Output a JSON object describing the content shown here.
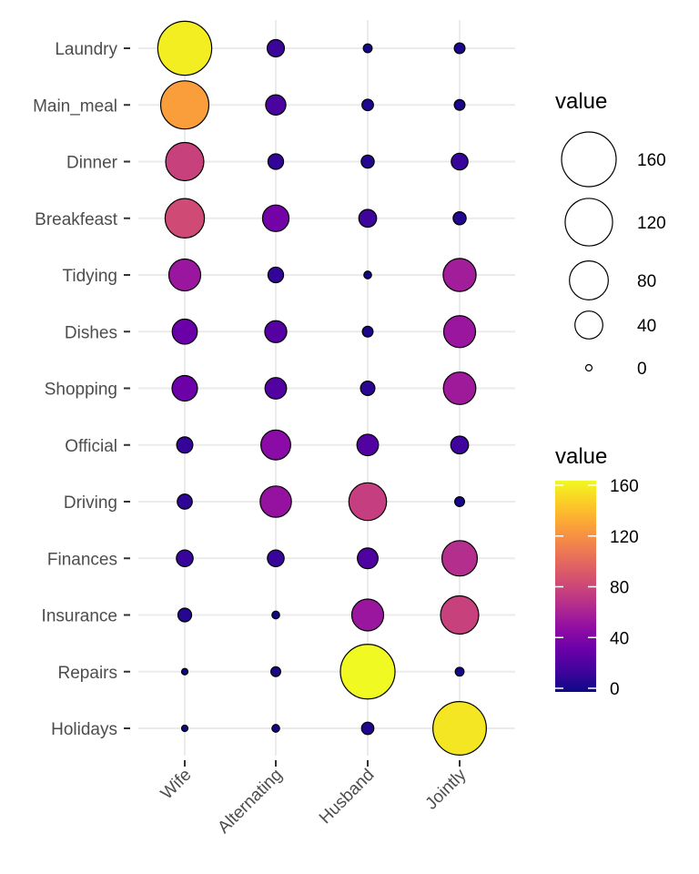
{
  "chart_data": {
    "type": "scatter",
    "subtype": "balloon",
    "title": "",
    "xlabel": "",
    "ylabel": "",
    "x_categories": [
      "Wife",
      "Alternating",
      "Husband",
      "Jointly"
    ],
    "y_categories": [
      "Laundry",
      "Main_meal",
      "Dinner",
      "Breakfeast",
      "Tidying",
      "Dishes",
      "Shopping",
      "Official",
      "Driving",
      "Finances",
      "Insurance",
      "Repairs",
      "Holidays"
    ],
    "values": [
      [
        156,
        14,
        2,
        4
      ],
      [
        124,
        20,
        5,
        4
      ],
      [
        77,
        11,
        7,
        13
      ],
      [
        82,
        36,
        15,
        7
      ],
      [
        53,
        11,
        1,
        57
      ],
      [
        32,
        24,
        4,
        53
      ],
      [
        33,
        23,
        9,
        55
      ],
      [
        12,
        46,
        23,
        15
      ],
      [
        10,
        51,
        75,
        3
      ],
      [
        13,
        13,
        21,
        66
      ],
      [
        8,
        1,
        53,
        77
      ],
      [
        0,
        3,
        160,
        2
      ],
      [
        0,
        1,
        6,
        153
      ]
    ],
    "grid": true,
    "colormap": "plasma",
    "legend_position": "right",
    "size_legend": {
      "title": "value",
      "breaks": [
        160,
        120,
        80,
        40,
        0
      ]
    },
    "color_legend": {
      "title": "value",
      "breaks": [
        160,
        120,
        80,
        40,
        0
      ],
      "limits": [
        0,
        160
      ]
    }
  }
}
